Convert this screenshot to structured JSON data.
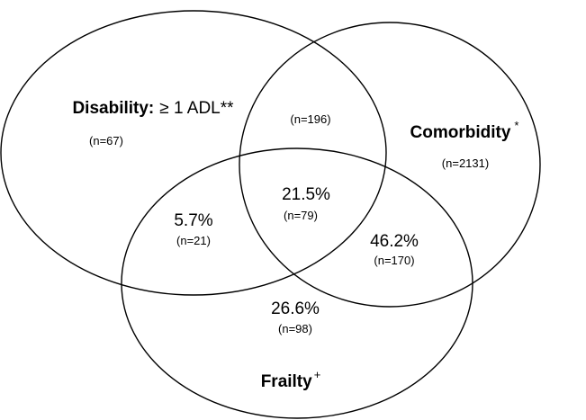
{
  "sets": [
    {
      "label": "Disability:",
      "qualifier": "≥ 1 ADL**",
      "n": "(n=67)"
    },
    {
      "label": "Comorbidity",
      "mark": "*",
      "n": "(n=2131)"
    },
    {
      "label": "Frailty",
      "mark": "+"
    }
  ],
  "regions": [
    {
      "sets": "Disability and Comorbidity",
      "n": "(n=196)"
    },
    {
      "sets": "All three",
      "percent": "21.5%",
      "n": "(n=79)"
    },
    {
      "sets": "Disability and Frailty",
      "percent": "5.7%",
      "n": "(n=21)"
    },
    {
      "sets": "Comorbidity and Frailty",
      "percent": "46.2%",
      "n": "(n=170)"
    },
    {
      "sets": "Frailty only",
      "percent": "26.6%",
      "n": "(n=98)"
    }
  ]
}
